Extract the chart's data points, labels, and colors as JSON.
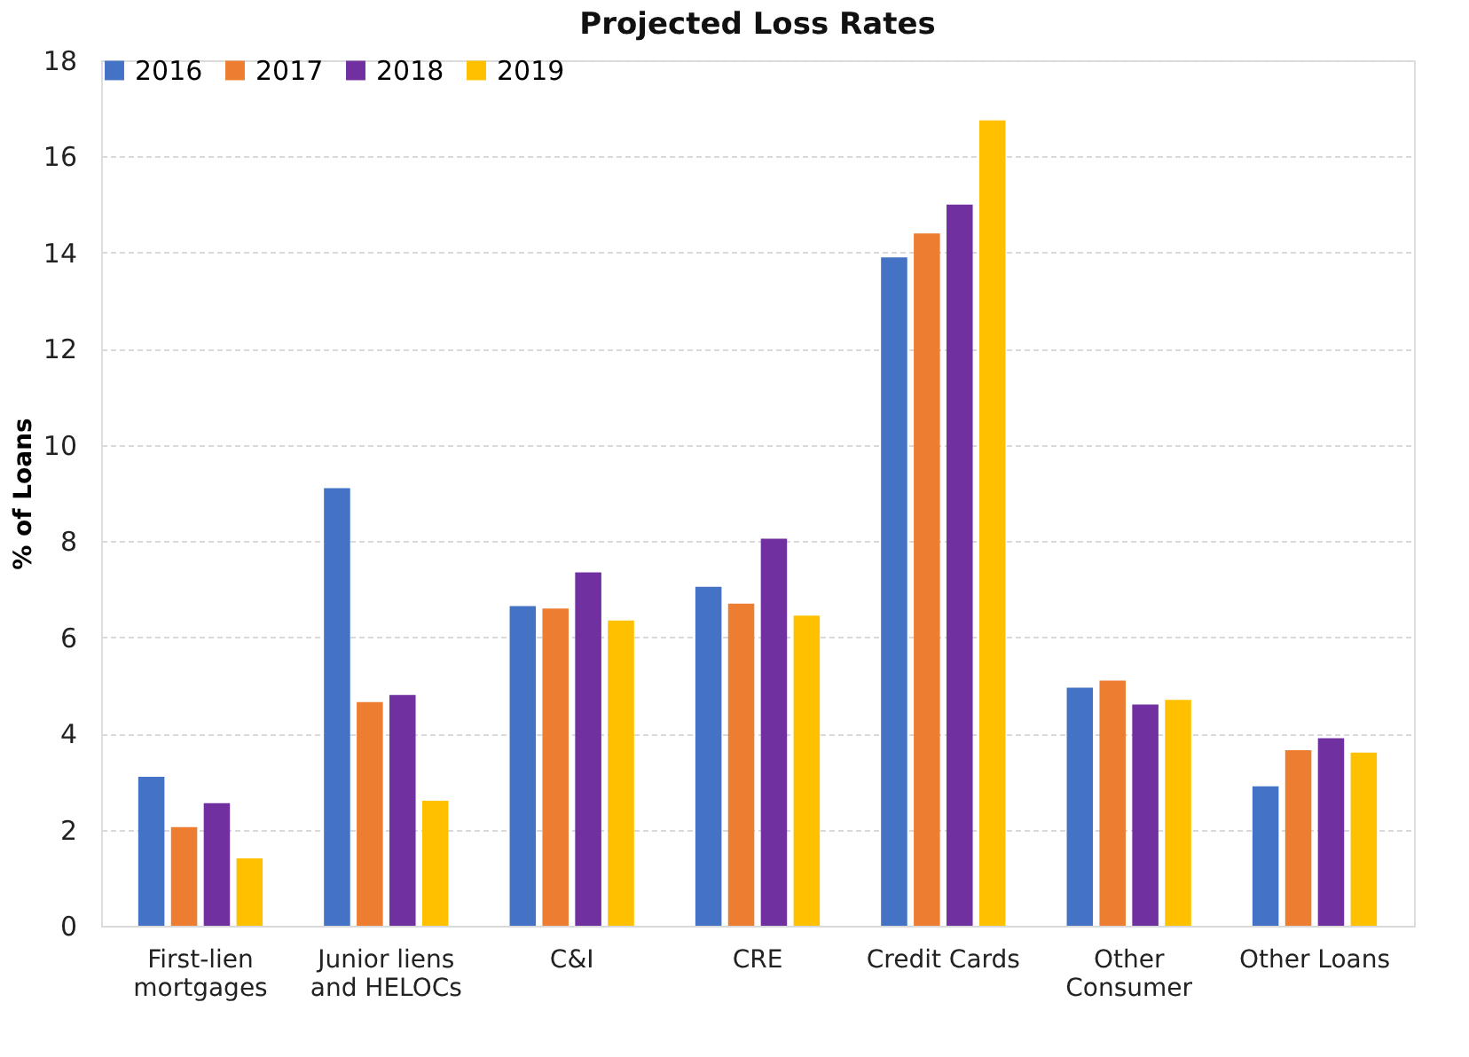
{
  "chart_data": {
    "type": "bar",
    "title": "Projected Loss Rates",
    "ylabel": "% of Loans",
    "categories": [
      [
        "First-lien",
        "mortgages"
      ],
      [
        "Junior liens",
        "and HELOCs"
      ],
      "C&I",
      "CRE",
      "Credit Cards",
      [
        "Other",
        "Consumer"
      ],
      "Other Loans"
    ],
    "series": [
      {
        "name": "2016",
        "color": "#4472c4",
        "values": [
          3.1,
          9.1,
          6.65,
          7.05,
          13.9,
          4.95,
          2.9
        ]
      },
      {
        "name": "2017",
        "color": "#ed7d31",
        "values": [
          2.05,
          4.65,
          6.6,
          6.7,
          14.4,
          5.1,
          3.65
        ]
      },
      {
        "name": "2018",
        "color": "#7030a0",
        "values": [
          2.55,
          4.8,
          7.35,
          8.05,
          15.0,
          4.6,
          3.9
        ]
      },
      {
        "name": "2019",
        "color": "#ffc000",
        "values": [
          1.4,
          2.6,
          6.35,
          6.45,
          16.75,
          4.7,
          3.6
        ]
      }
    ],
    "ylim": [
      0,
      18
    ],
    "yticks": [
      0,
      2,
      4,
      6,
      8,
      10,
      12,
      14,
      16,
      18
    ],
    "grid": "y",
    "legend": "top"
  }
}
